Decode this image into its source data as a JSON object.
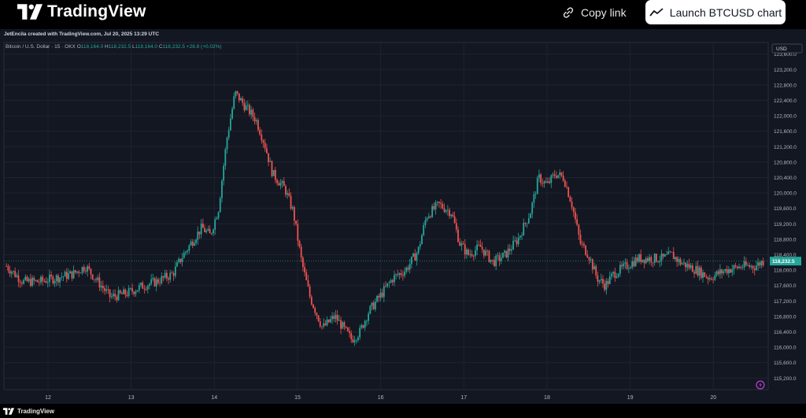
{
  "header": {
    "brand": "TradingView",
    "copy_link_label": "Copy link",
    "launch_label": "Launch BTCUSD chart"
  },
  "credit": "JetEncila created with TradingView.com, Jul 20, 2025 13:29 UTC",
  "legend": {
    "symbol": "Bitcoin / U.S. Dollar · 15 · OKX",
    "open_label": "O",
    "open": "118,164.0",
    "high_label": "H",
    "high": "118,232.5",
    "low_label": "L",
    "low": "118,164.0",
    "close_label": "C",
    "close": "118,232.5",
    "change": "+28.8 (+0.02%)"
  },
  "footer": {
    "brand": "TradingView"
  },
  "colors": {
    "up": "#26a69a",
    "down": "#ef5350",
    "background": "#131722",
    "grid": "#1f2330",
    "price_badge": "#26a69a"
  },
  "chart_data": {
    "type": "candlestick",
    "currency_label": "USD",
    "current_price": 118232.5,
    "current_price_label": "118,232.5",
    "ylim": [
      114900,
      123900
    ],
    "y_ticks": [
      115200,
      115600,
      116000,
      116400,
      116800,
      117200,
      117600,
      118000,
      118400,
      118800,
      119200,
      119600,
      120000,
      120400,
      120800,
      121200,
      121600,
      122000,
      122400,
      122800,
      123200,
      123600
    ],
    "y_tick_labels": [
      "115,200.0",
      "115,600.0",
      "116,000.0",
      "116,400.0",
      "116,800.0",
      "117,200.0",
      "117,600.0",
      "118,000.0",
      "118,400.0",
      "118,800.0",
      "119,200.0",
      "119,600.0",
      "120,000.0",
      "120,400.0",
      "120,800.0",
      "121,200.0",
      "121,600.0",
      "122,000.0",
      "122,400.0",
      "122,800.0",
      "123,200.0",
      "123,600.0"
    ],
    "x_domain": [
      11.47,
      20.66
    ],
    "x_ticks": [
      12,
      13,
      14,
      15,
      16,
      17,
      18,
      19,
      20
    ],
    "x_tick_labels": [
      "12",
      "13",
      "14",
      "15",
      "16",
      "17",
      "18",
      "19",
      "20"
    ],
    "price_path": [
      [
        11.5,
        118100
      ],
      [
        11.7,
        117700
      ],
      [
        11.9,
        117700
      ],
      [
        12.1,
        117800
      ],
      [
        12.3,
        117900
      ],
      [
        12.45,
        118100
      ],
      [
        12.6,
        117700
      ],
      [
        12.75,
        117300
      ],
      [
        12.95,
        117400
      ],
      [
        13.15,
        117600
      ],
      [
        13.3,
        117700
      ],
      [
        13.5,
        117900
      ],
      [
        13.6,
        118300
      ],
      [
        13.75,
        118800
      ],
      [
        13.85,
        119100
      ],
      [
        13.95,
        118900
      ],
      [
        14.05,
        119600
      ],
      [
        14.15,
        121400
      ],
      [
        14.25,
        122600
      ],
      [
        14.35,
        122300
      ],
      [
        14.5,
        121900
      ],
      [
        14.6,
        121300
      ],
      [
        14.7,
        120500
      ],
      [
        14.85,
        120100
      ],
      [
        14.95,
        119500
      ],
      [
        15.05,
        118200
      ],
      [
        15.15,
        117300
      ],
      [
        15.3,
        116500
      ],
      [
        15.45,
        116800
      ],
      [
        15.55,
        116500
      ],
      [
        15.65,
        116200
      ],
      [
        15.75,
        116400
      ],
      [
        15.85,
        116900
      ],
      [
        15.95,
        117200
      ],
      [
        16.05,
        117500
      ],
      [
        16.15,
        117800
      ],
      [
        16.3,
        118000
      ],
      [
        16.45,
        118500
      ],
      [
        16.55,
        119400
      ],
      [
        16.7,
        119700
      ],
      [
        16.85,
        119500
      ],
      [
        16.95,
        118700
      ],
      [
        17.05,
        118400
      ],
      [
        17.2,
        118600
      ],
      [
        17.35,
        118200
      ],
      [
        17.5,
        118400
      ],
      [
        17.65,
        118800
      ],
      [
        17.8,
        119500
      ],
      [
        17.9,
        120400
      ],
      [
        18.0,
        120200
      ],
      [
        18.1,
        120500
      ],
      [
        18.2,
        120400
      ],
      [
        18.3,
        119700
      ],
      [
        18.4,
        118700
      ],
      [
        18.5,
        118400
      ],
      [
        18.6,
        117800
      ],
      [
        18.7,
        117600
      ],
      [
        18.8,
        117900
      ],
      [
        18.95,
        118100
      ],
      [
        19.1,
        118300
      ],
      [
        19.25,
        118300
      ],
      [
        19.4,
        118300
      ],
      [
        19.5,
        118400
      ],
      [
        19.6,
        118200
      ],
      [
        19.8,
        118000
      ],
      [
        19.95,
        117800
      ],
      [
        20.15,
        118000
      ],
      [
        20.35,
        118100
      ],
      [
        20.5,
        118100
      ],
      [
        20.6,
        118232
      ]
    ]
  }
}
